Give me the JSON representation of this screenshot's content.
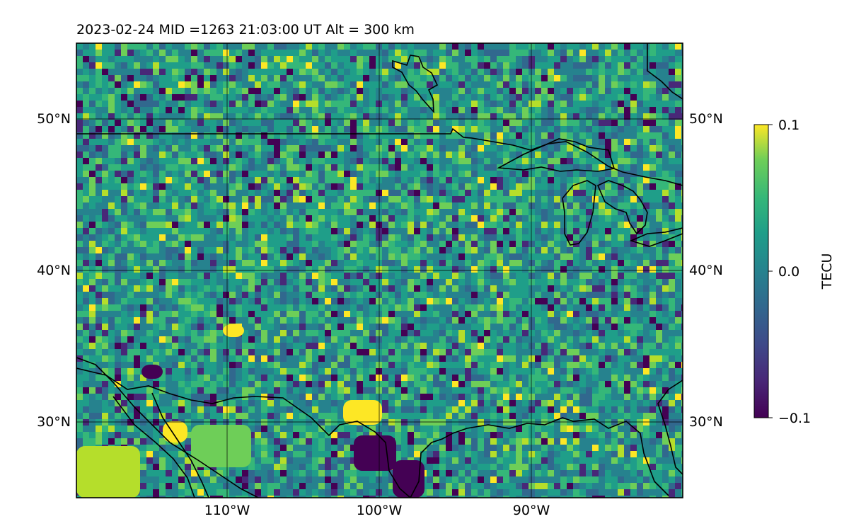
{
  "map": {
    "title": "2023-02-24  MID =1263    21:03:00  UT  Alt = 300 km",
    "lat_labels": [
      "50°N",
      "40°N",
      "30°N"
    ],
    "lon_labels": [
      "110°W",
      "100°W",
      "90°W"
    ],
    "lon_range": [
      -120,
      -80
    ],
    "lat_range": [
      25,
      55
    ],
    "gridlines": "on",
    "colormap": "viridis",
    "colors": {
      "low": "#440154",
      "mid": "#21918c",
      "high": "#fde725",
      "coastline": "#000000"
    }
  },
  "colorbar": {
    "label": "TECU",
    "ticks": [
      "0.1",
      "0.0",
      "−0.1"
    ],
    "range": [
      -0.1,
      0.1
    ]
  }
}
